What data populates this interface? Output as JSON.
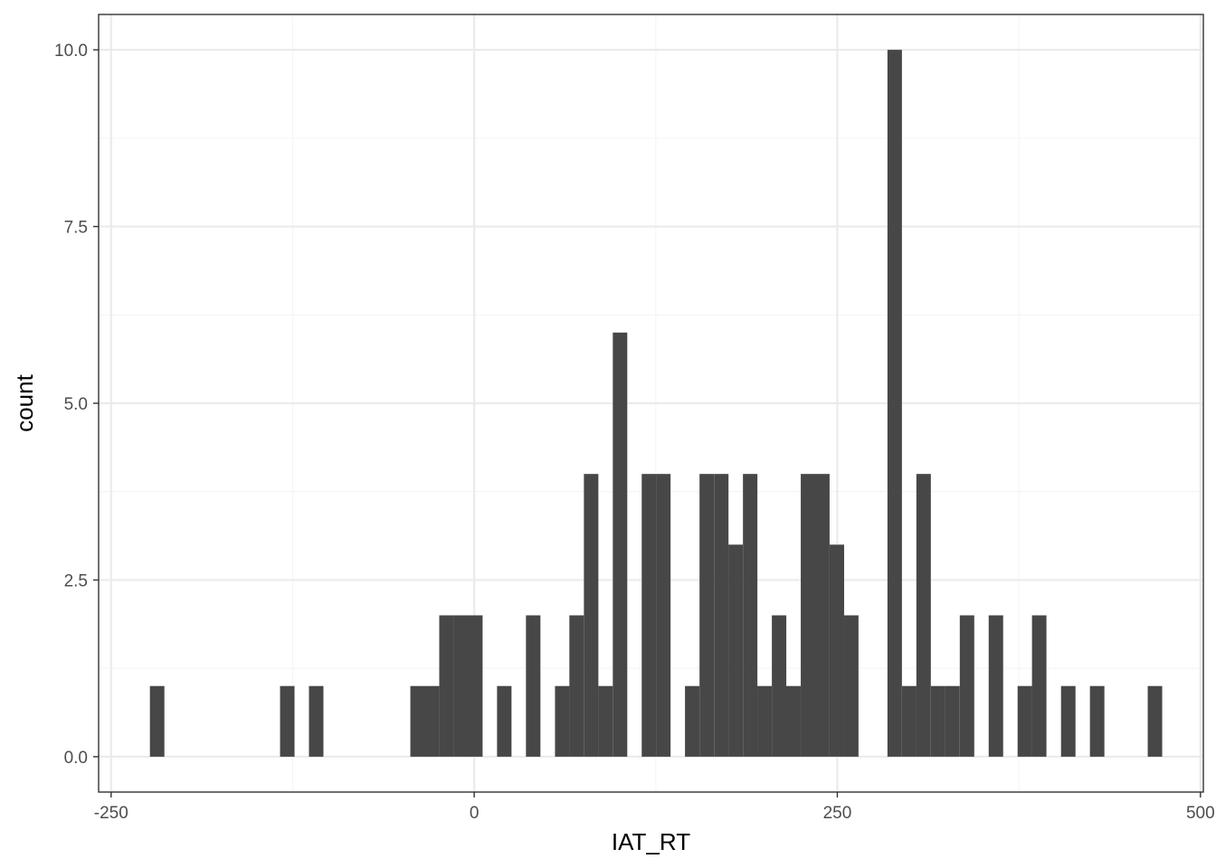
{
  "chart_data": {
    "type": "bar",
    "title": "",
    "xlabel": "IAT_RT",
    "ylabel": "count",
    "xlim": [
      -258.6,
      502.0
    ],
    "ylim": [
      -0.5,
      10.5
    ],
    "x_ticks": [
      -250,
      0,
      250,
      500
    ],
    "x_tick_labels": [
      "-250",
      "0",
      "250",
      "500"
    ],
    "x_minor_ticks": [
      -125,
      125,
      375
    ],
    "y_ticks": [
      0,
      2.5,
      5,
      7.5,
      10
    ],
    "y_tick_labels": [
      "0.0",
      "2.5",
      "5.0",
      "7.5",
      "10.0"
    ],
    "y_minor_ticks": [
      1.25,
      3.75,
      6.25,
      8.75
    ],
    "grid": true,
    "bin_width": 9.96,
    "bins": [
      {
        "x": -218.3,
        "count": 1
      },
      {
        "x": -128.7,
        "count": 1
      },
      {
        "x": -108.8,
        "count": 1
      },
      {
        "x": -39.0,
        "count": 1
      },
      {
        "x": -29.1,
        "count": 1
      },
      {
        "x": -19.1,
        "count": 2
      },
      {
        "x": -9.1,
        "count": 2
      },
      {
        "x": 0.8,
        "count": 2
      },
      {
        "x": 20.7,
        "count": 1
      },
      {
        "x": 40.6,
        "count": 2
      },
      {
        "x": 60.6,
        "count": 1
      },
      {
        "x": 70.5,
        "count": 2
      },
      {
        "x": 80.5,
        "count": 4
      },
      {
        "x": 90.4,
        "count": 1
      },
      {
        "x": 100.4,
        "count": 6
      },
      {
        "x": 120.3,
        "count": 4
      },
      {
        "x": 130.2,
        "count": 4
      },
      {
        "x": 150.1,
        "count": 1
      },
      {
        "x": 160.1,
        "count": 4
      },
      {
        "x": 170.1,
        "count": 4
      },
      {
        "x": 180.0,
        "count": 3
      },
      {
        "x": 190.0,
        "count": 4
      },
      {
        "x": 199.9,
        "count": 1
      },
      {
        "x": 209.9,
        "count": 2
      },
      {
        "x": 219.8,
        "count": 1
      },
      {
        "x": 229.8,
        "count": 4
      },
      {
        "x": 239.7,
        "count": 4
      },
      {
        "x": 249.7,
        "count": 3
      },
      {
        "x": 259.6,
        "count": 2
      },
      {
        "x": 289.5,
        "count": 10
      },
      {
        "x": 299.5,
        "count": 1
      },
      {
        "x": 309.4,
        "count": 4
      },
      {
        "x": 319.4,
        "count": 1
      },
      {
        "x": 329.3,
        "count": 1
      },
      {
        "x": 339.3,
        "count": 2
      },
      {
        "x": 359.2,
        "count": 2
      },
      {
        "x": 379.1,
        "count": 1
      },
      {
        "x": 389.0,
        "count": 2
      },
      {
        "x": 409.0,
        "count": 1
      },
      {
        "x": 428.9,
        "count": 1
      },
      {
        "x": 468.7,
        "count": 1
      }
    ],
    "colors": {
      "bar_fill": "#474747",
      "panel_border": "#333333",
      "grid_major": "#ebebeb",
      "grid_minor": "#f5f5f5",
      "tick_text": "#4d4d4d",
      "axis_title": "#000000"
    }
  }
}
